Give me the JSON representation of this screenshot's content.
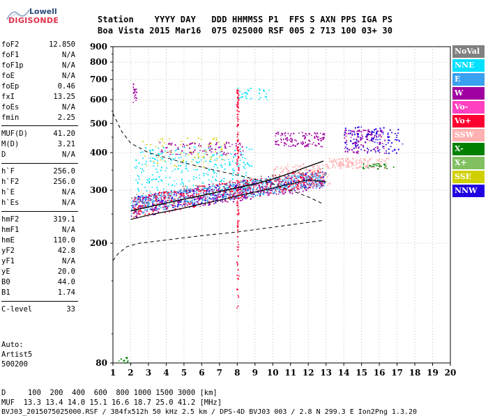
{
  "logo": {
    "line1": "Lowell",
    "line2": "DIGISONDE"
  },
  "header": {
    "line1": "Station    YYYY DAY   DDD HHMMSS P1  FFS S AXN PPS IGA PS",
    "line2": "Boa Vista 2015 Mar16  075 025000 RSF 005 2 713 100 03+ 30"
  },
  "params": [
    {
      "label": "foF2",
      "value": "12.850"
    },
    {
      "label": "foF1",
      "value": "N/A"
    },
    {
      "label": "foF1p",
      "value": "N/A"
    },
    {
      "label": "foE",
      "value": "N/A"
    },
    {
      "label": "foEp",
      "value": "0.46"
    },
    {
      "label": "fxI",
      "value": "13.25"
    },
    {
      "label": "foEs",
      "value": "N/A"
    },
    {
      "label": "fmin",
      "value": "2.25"
    },
    {
      "label": "MUF(D)",
      "value": "41.20"
    },
    {
      "label": "M(D)",
      "value": "3.21"
    },
    {
      "label": "D",
      "value": "N/A"
    },
    {
      "label": "h`F",
      "value": "256.0"
    },
    {
      "label": "h`F2",
      "value": "256.0"
    },
    {
      "label": "h`E",
      "value": "N/A"
    },
    {
      "label": "h`Es",
      "value": "N/A"
    },
    {
      "label": "hmF2",
      "value": "319.1"
    },
    {
      "label": "hmF1",
      "value": "N/A"
    },
    {
      "label": "hmE",
      "value": "110.0"
    },
    {
      "label": "yF2",
      "value": "42.8"
    },
    {
      "label": "yF1",
      "value": "N/A"
    },
    {
      "label": "yE",
      "value": "20.0"
    },
    {
      "label": "B0",
      "value": "44.0"
    },
    {
      "label": "B1",
      "value": "1.74"
    },
    {
      "label": "C-level",
      "value": "33"
    }
  ],
  "auto": {
    "line1": "Auto:",
    "line2": "Artist5",
    "line3": "500200"
  },
  "legend": [
    {
      "label": "NoVal",
      "color": "#808080"
    },
    {
      "label": "NNE",
      "color": "#00e0ff"
    },
    {
      "label": "E",
      "color": "#3aa0f0"
    },
    {
      "label": "W",
      "color": "#a000a0"
    },
    {
      "label": "Vo-",
      "color": "#ff40c0"
    },
    {
      "label": "Vo+",
      "color": "#ff0030"
    },
    {
      "label": "SSW",
      "color": "#ffb0b0"
    },
    {
      "label": "X-",
      "color": "#008000"
    },
    {
      "label": "X+",
      "color": "#80c060"
    },
    {
      "label": "SSE",
      "color": "#d0d000"
    },
    {
      "label": "NNW",
      "color": "#2000e0"
    }
  ],
  "footer": {
    "line1": "D     100  200  400  600  800 1000 1500 3000 [km]",
    "line2": "MUF  13.3 13.4 14.0 15.1 16.6 18.7 25.0 41.2 [MHz]",
    "line3": "BVJ03_2015075025000.RSF / 384fx512h 50 kHz 2.5 km / DPS-4D BVJ03 003 / 2.8 N 299.3 E Ion2Png 1.3.20"
  },
  "chart_data": {
    "type": "scatter",
    "title": "",
    "xlabel": "",
    "ylabel": "",
    "xlim": [
      1,
      20
    ],
    "ylim": [
      80,
      900
    ],
    "x_ticks": [
      1,
      2,
      3,
      4,
      5,
      6,
      7,
      8,
      9,
      10,
      11,
      12,
      13,
      14,
      15,
      16,
      17,
      18,
      19,
      20
    ],
    "y_ticks": [
      80,
      200,
      300,
      400,
      500,
      600,
      700,
      800,
      900
    ],
    "y_scale": "log",
    "grid": true,
    "legend_position": "right",
    "series": [
      {
        "name": "NoVal",
        "color": "#808080"
      },
      {
        "name": "NNE",
        "color": "#00e0ff"
      },
      {
        "name": "E",
        "color": "#3aa0f0"
      },
      {
        "name": "W",
        "color": "#a000a0"
      },
      {
        "name": "Vo-",
        "color": "#ff40c0"
      },
      {
        "name": "Vo+",
        "color": "#ff0030"
      },
      {
        "name": "SSW",
        "color": "#ffb0b0"
      },
      {
        "name": "X-",
        "color": "#008000"
      },
      {
        "name": "X+",
        "color": "#80c060"
      },
      {
        "name": "SSE",
        "color": "#d0d000"
      },
      {
        "name": "NNW",
        "color": "#2000e0"
      }
    ],
    "trace_o": {
      "x": [
        2.0,
        3,
        4,
        5,
        6,
        7,
        8,
        9,
        10,
        11,
        12,
        12.85
      ],
      "y": [
        256,
        264,
        272,
        280,
        288,
        297,
        306,
        315,
        327,
        342,
        360,
        375
      ]
    },
    "trace_x": {
      "x": [
        2.0,
        3,
        4,
        5,
        6,
        7,
        8,
        9,
        10,
        11,
        12,
        13.0
      ],
      "y": [
        240,
        248,
        255,
        262,
        270,
        278,
        287,
        296,
        305,
        315,
        325,
        320
      ]
    },
    "profile_dashed": {
      "x": [
        1.0,
        1.5,
        2,
        3,
        4,
        5,
        6,
        7,
        8,
        9,
        10,
        11,
        12,
        12.85
      ],
      "y": [
        540,
        470,
        430,
        400,
        385,
        370,
        358,
        347,
        337,
        326,
        315,
        300,
        285,
        270
      ]
    },
    "profile_lower": {
      "x": [
        1.0,
        1.3,
        1.8,
        2.5,
        4,
        6,
        8,
        10,
        12.8
      ],
      "y": [
        175,
        185,
        195,
        200,
        205,
        212,
        218,
        226,
        238
      ]
    },
    "clusters": [
      {
        "series": "E",
        "x": [
          2.0,
          12.9
        ],
        "y": [
          265,
          350
        ],
        "n": 900
      },
      {
        "series": "NNE",
        "x": [
          2.2,
          8.8
        ],
        "y": [
          300,
          420
        ],
        "n": 260
      },
      {
        "series": "Vo+",
        "x": [
          2.1,
          12.9
        ],
        "y": [
          260,
          360
        ],
        "n": 420
      },
      {
        "series": "W",
        "x": [
          2.1,
          12.9
        ],
        "y": [
          260,
          345
        ],
        "n": 300
      },
      {
        "series": "SSE",
        "x": [
          2.4,
          7.5
        ],
        "y": [
          360,
          450
        ],
        "n": 70
      },
      {
        "series": "NoVal",
        "x": [
          2.0,
          13.0
        ],
        "y": [
          270,
          360
        ],
        "n": 120
      },
      {
        "series": "NNW",
        "x": [
          2.0,
          13.0
        ],
        "y": [
          260,
          360
        ],
        "n": 120
      },
      {
        "series": "W",
        "x": [
          3.6,
          8.3
        ],
        "y": [
          395,
          435
        ],
        "n": 90
      },
      {
        "series": "W",
        "x": [
          10.1,
          12.9
        ],
        "y": [
          420,
          470
        ],
        "n": 120
      },
      {
        "series": "NNW",
        "x": [
          14.0,
          17.3
        ],
        "y": [
          400,
          490
        ],
        "n": 140
      },
      {
        "series": "W",
        "x": [
          14.0,
          16.3
        ],
        "y": [
          400,
          480
        ],
        "n": 100
      },
      {
        "series": "SSW",
        "x": [
          13.0,
          16.5
        ],
        "y": [
          355,
          385
        ],
        "n": 160
      },
      {
        "series": "SSW",
        "x": [
          10.0,
          13.2
        ],
        "y": [
          310,
          370
        ],
        "n": 120
      },
      {
        "series": "X-",
        "x": [
          15.0,
          16.8
        ],
        "y": [
          355,
          370
        ],
        "n": 30
      },
      {
        "series": "Vo+",
        "x": [
          7.95,
          8.05
        ],
        "y": [
          120,
          650
        ],
        "n": 130
      },
      {
        "series": "W",
        "x": [
          2.1,
          2.3
        ],
        "y": [
          590,
          680
        ],
        "n": 20
      },
      {
        "series": "NNE",
        "x": [
          7.9,
          9.8
        ],
        "y": [
          600,
          660
        ],
        "n": 30
      },
      {
        "series": "X-",
        "x": [
          1.3,
          2.0
        ],
        "y": [
          80,
          84
        ],
        "n": 12
      }
    ]
  }
}
